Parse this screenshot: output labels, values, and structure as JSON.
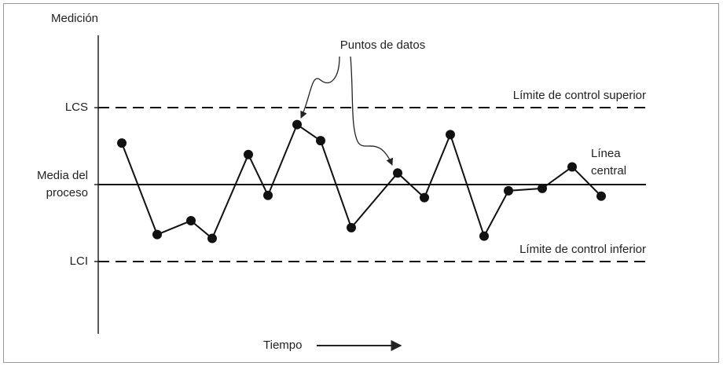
{
  "chart_data": {
    "type": "line",
    "y_label": "Medición",
    "x_label": "Tiempo",
    "annotation": "Puntos de datos",
    "x": [
      3.0,
      7.5,
      11.8,
      14.5,
      19.1,
      21.6,
      25.3,
      28.3,
      32.2,
      38.1,
      41.5,
      44.8,
      49.1,
      52.2,
      56.5,
      60.3,
      64.0
    ],
    "values": [
      0.54,
      -0.65,
      -0.47,
      -0.7,
      0.39,
      -0.14,
      0.78,
      0.57,
      -0.56,
      0.15,
      -0.17,
      0.65,
      -0.67,
      -0.08,
      -0.05,
      0.23,
      -0.15
    ],
    "color": "#111111",
    "xlim": [
      0,
      70
    ],
    "ylim": [
      -1.94,
      1.94
    ],
    "yticks": [
      {
        "value": 1,
        "label": "LCS"
      },
      {
        "value": 0,
        "label": "Media del proceso"
      },
      {
        "value": -1,
        "label": "LCI"
      }
    ],
    "reference_lines": [
      {
        "value": 1,
        "label": "Límite de control superior",
        "style": "dashed"
      },
      {
        "value": 0,
        "label": "Línea central",
        "style": "solid"
      },
      {
        "value": -1,
        "label": "Límite de control inferior",
        "style": "dashed"
      }
    ]
  }
}
